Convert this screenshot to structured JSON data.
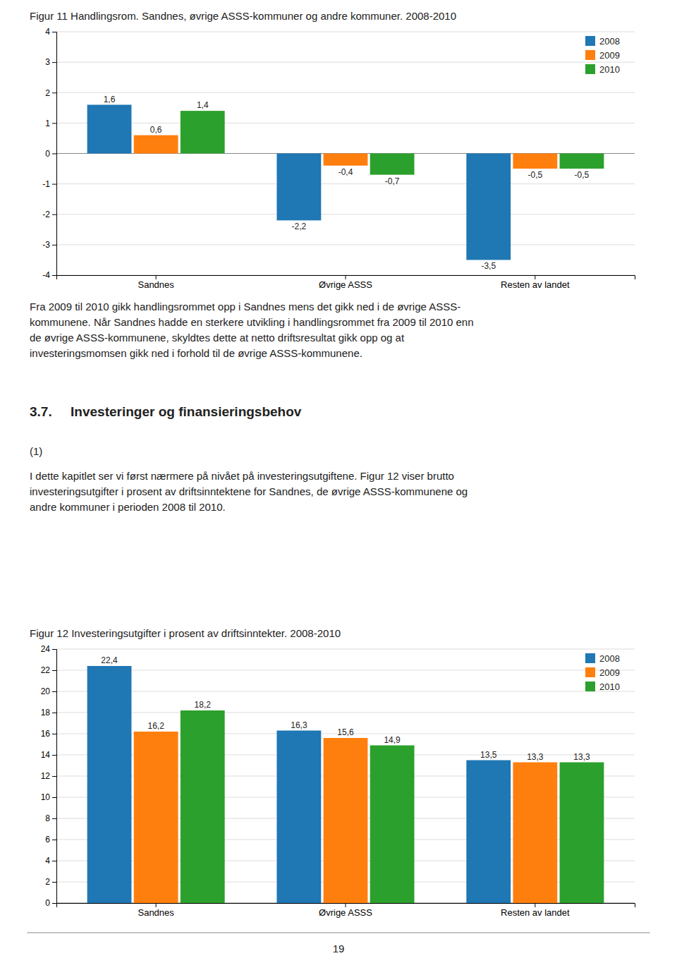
{
  "chart_data": [
    {
      "type": "bar",
      "title": "Figur 11 Handlingsrom. Sandnes, øvrige ASSS-kommuner og andre kommuner. 2008-2010",
      "categories": [
        "Sandnes",
        "Øvrige ASSS",
        "Resten av landet"
      ],
      "series": [
        {
          "name": "2008",
          "values": [
            1.6,
            -2.2,
            -3.5
          ],
          "value_labels": [
            "1,6",
            "-2,2",
            "-3,5"
          ]
        },
        {
          "name": "2009",
          "values": [
            0.6,
            -0.4,
            -0.5
          ],
          "value_labels": [
            "0,6",
            "-0,4",
            "-0,5"
          ]
        },
        {
          "name": "2010",
          "values": [
            1.4,
            -0.7,
            -0.5
          ],
          "value_labels": [
            "1,4",
            "-0,7",
            "-0,5"
          ]
        }
      ],
      "ylim": [
        -4,
        4
      ],
      "yticks": [
        -4,
        -3,
        -2,
        -1,
        0,
        1,
        2,
        3,
        4
      ],
      "grid": true,
      "legend": "upper right",
      "data_labels": true
    },
    {
      "type": "bar",
      "title": "Figur 12 Investeringsutgifter i prosent av driftsinntekter. 2008-2010",
      "categories": [
        "Sandnes",
        "Øvrige ASSS",
        "Resten av landet"
      ],
      "series": [
        {
          "name": "2008",
          "values": [
            22.4,
            16.3,
            13.5
          ],
          "value_labels": [
            "22,4",
            "16,3",
            "13,5"
          ]
        },
        {
          "name": "2009",
          "values": [
            16.2,
            15.6,
            13.3
          ],
          "value_labels": [
            "16,2",
            "15,6",
            "13,3"
          ]
        },
        {
          "name": "2010",
          "values": [
            18.2,
            14.9,
            13.3
          ],
          "value_labels": [
            "18,2",
            "14,9",
            "13,3"
          ]
        }
      ],
      "ylim": [
        0,
        24
      ],
      "yticks": [
        0,
        2,
        4,
        6,
        8,
        10,
        12,
        14,
        16,
        18,
        20,
        22,
        24
      ],
      "grid": true,
      "legend": "upper right",
      "data_labels": true
    }
  ],
  "texts": {
    "paragraphs": [
      [
        "Fra 2009 til 2010 gikk handlingsrommet opp i Sandnes mens det gikk ned i de øvrige ASSS-",
        "kommunene. Når Sandnes hadde en sterkere utvikling i handlingsrommet fra 2009 til 2010 enn",
        "de øvrige ASSS-kommunene, skyldtes dette at netto driftsresultat gikk opp og at",
        "investeringsmomsen gikk ned i forhold til de øvrige ASSS-kommunene."
      ],
      [
        "I dette kapitlet ser vi først nærmere på nivået på investeringsutgiftene. Figur 12 viser brutto",
        "investeringsutgifter i prosent av driftsinntektene for Sandnes, de øvrige ASSS-kommunene og",
        "andre kommuner i perioden 2008 til 2010."
      ]
    ],
    "heading": "3.7.     Investeringer og finansieringsbehov",
    "footnote": "(1)",
    "page_number": "19"
  }
}
